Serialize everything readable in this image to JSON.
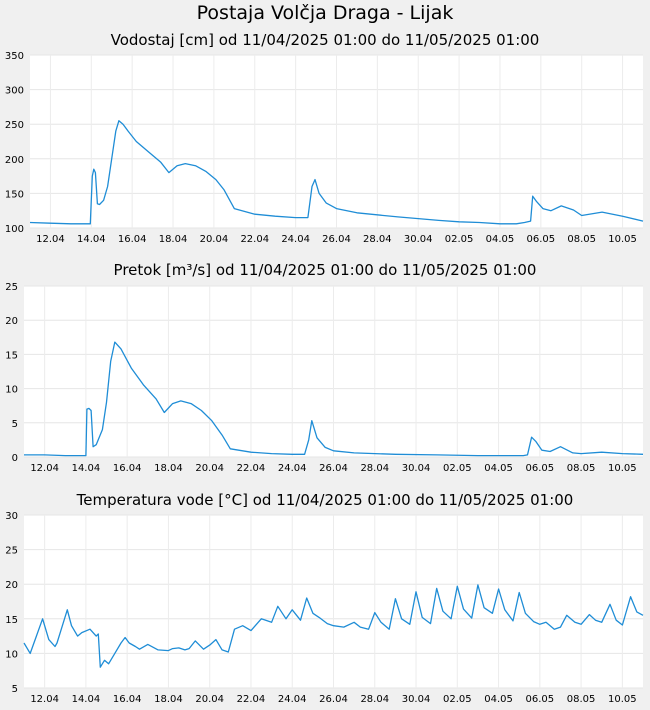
{
  "page_title": "Postaja Volčja Draga - Lijak",
  "chart_data": [
    {
      "type": "line",
      "title": "Vodostaj [cm] od 11/04/2025 01:00 do 11/05/2025 01:00",
      "ylabel": "Vodostaj [cm]",
      "ylim": [
        100,
        350
      ],
      "yticks": [
        "350",
        "300",
        "250",
        "200",
        "150",
        "100"
      ],
      "xlim": [
        0,
        30
      ],
      "xticks": [
        "12.04",
        "14.04",
        "16.04",
        "18.04",
        "20.04",
        "22.04",
        "24.04",
        "26.04",
        "28.04",
        "30.04",
        "02.05",
        "04.05",
        "06.05",
        "08.05",
        "10.05"
      ],
      "color": "#1f8dd6",
      "series": [
        {
          "name": "Vodostaj",
          "x": [
            0,
            1,
            2,
            2.95,
            3.05,
            3.12,
            3.2,
            3.3,
            3.4,
            3.6,
            3.8,
            4.0,
            4.2,
            4.35,
            4.55,
            4.8,
            5.2,
            5.8,
            6.4,
            6.8,
            7.2,
            7.6,
            8.1,
            8.6,
            9.1,
            9.5,
            10,
            11,
            12,
            13,
            13.6,
            13.8,
            13.95,
            14.15,
            14.5,
            15,
            16,
            18,
            20,
            21,
            22,
            23,
            23.8,
            24.2,
            24.5,
            24.6,
            24.8,
            25.1,
            25.5,
            26,
            26.6,
            27,
            28,
            29,
            30
          ],
          "y": [
            108,
            107,
            106,
            106,
            175,
            185,
            180,
            135,
            134,
            140,
            160,
            200,
            240,
            255,
            250,
            240,
            225,
            210,
            195,
            180,
            190,
            193,
            190,
            182,
            170,
            155,
            128,
            120,
            117,
            115,
            115,
            160,
            170,
            150,
            136,
            128,
            122,
            116,
            111,
            109,
            108,
            106,
            106,
            108,
            110,
            146,
            138,
            128,
            125,
            132,
            126,
            118,
            123,
            117,
            110
          ]
        }
      ]
    },
    {
      "type": "line",
      "title": "Pretok [m³/s] od 11/04/2025 01:00 do 11/05/2025 01:00",
      "ylabel": "Pretok [m³/s]",
      "ylim": [
        0,
        25
      ],
      "yticks": [
        "25",
        "20",
        "15",
        "10",
        "5",
        "0"
      ],
      "xlim": [
        0,
        30
      ],
      "xticks": [
        "12.04",
        "14.04",
        "16.04",
        "18.04",
        "20.04",
        "22.04",
        "24.04",
        "26.04",
        "28.04",
        "30.04",
        "02.05",
        "04.05",
        "06.05",
        "08.05",
        "10.05"
      ],
      "color": "#1f8dd6",
      "series": [
        {
          "name": "Pretok",
          "x": [
            0,
            1,
            2,
            3.0,
            3.05,
            3.15,
            3.25,
            3.35,
            3.5,
            3.8,
            4.0,
            4.2,
            4.4,
            4.7,
            5.2,
            5.8,
            6.4,
            6.8,
            7.2,
            7.6,
            8.1,
            8.6,
            9.1,
            9.6,
            10,
            11,
            12,
            13,
            13.6,
            13.8,
            13.95,
            14.2,
            14.6,
            15,
            16,
            18,
            20,
            22,
            24.2,
            24.4,
            24.6,
            24.8,
            25.1,
            25.5,
            26,
            26.6,
            27,
            28,
            29,
            30
          ],
          "y": [
            0.3,
            0.3,
            0.2,
            0.2,
            7.0,
            7.1,
            6.8,
            1.5,
            1.8,
            4,
            8,
            14,
            16.8,
            15.8,
            13,
            10.5,
            8.5,
            6.5,
            7.8,
            8.2,
            7.8,
            6.8,
            5.3,
            3.2,
            1.2,
            0.7,
            0.5,
            0.4,
            0.4,
            2.5,
            5.3,
            2.8,
            1.4,
            0.9,
            0.6,
            0.4,
            0.3,
            0.2,
            0.2,
            0.3,
            2.9,
            2.3,
            1.0,
            0.8,
            1.5,
            0.6,
            0.5,
            0.7,
            0.5,
            0.4
          ]
        }
      ]
    },
    {
      "type": "line",
      "title": "Temperatura vode [°C] od 11/04/2025 01:00 do 11/05/2025 01:00",
      "ylabel": "Temperatura vode [°C]",
      "ylim": [
        5,
        30
      ],
      "yticks": [
        "30",
        "25",
        "20",
        "15",
        "10",
        "5"
      ],
      "xlim": [
        0,
        30
      ],
      "xticks": [
        "12.04",
        "14.04",
        "16.04",
        "18.04",
        "20.04",
        "22.04",
        "24.04",
        "26.04",
        "28.04",
        "30.04",
        "02.05",
        "04.05",
        "06.05",
        "08.05",
        "10.05"
      ],
      "color": "#1f8dd6",
      "series": [
        {
          "name": "Temperatura vode",
          "x": [
            0,
            0.3,
            0.6,
            0.9,
            1.2,
            1.5,
            1.6,
            2.1,
            2.3,
            2.6,
            2.8,
            3.2,
            3.5,
            3.6,
            3.7,
            3.9,
            4.1,
            4.4,
            4.7,
            4.9,
            5.1,
            5.4,
            5.6,
            6.0,
            6.5,
            7.0,
            7.2,
            7.5,
            7.8,
            8.0,
            8.3,
            8.7,
            9.0,
            9.3,
            9.6,
            9.9,
            10.2,
            10.6,
            11.0,
            11.5,
            12.0,
            12.3,
            12.7,
            13.0,
            13.4,
            13.7,
            14.0,
            14.3,
            14.7,
            15.0,
            15.5,
            16.0,
            16.3,
            16.7,
            17.0,
            17.3,
            17.7,
            18.0,
            18.3,
            18.7,
            19.0,
            19.3,
            19.7,
            20.0,
            20.3,
            20.7,
            21.0,
            21.3,
            21.7,
            22.0,
            22.3,
            22.7,
            23.0,
            23.3,
            23.7,
            24.0,
            24.3,
            24.7,
            25.0,
            25.3,
            25.7,
            26.0,
            26.3,
            26.7,
            27.0,
            27.4,
            27.7,
            28.0,
            28.4,
            28.7,
            29.0,
            29.4,
            29.7,
            30
          ],
          "y": [
            11.5,
            10,
            12.5,
            15,
            12,
            11,
            11.5,
            16.3,
            14,
            12.5,
            13,
            13.5,
            12.5,
            12.8,
            8,
            9,
            8.5,
            10,
            11.5,
            12.3,
            11.5,
            11,
            10.6,
            11.3,
            10.5,
            10.4,
            10.7,
            10.8,
            10.5,
            10.7,
            11.8,
            10.6,
            11.2,
            12,
            10.5,
            10.2,
            13.5,
            14,
            13.3,
            15,
            14.5,
            16.8,
            15,
            16.3,
            14.8,
            18,
            15.8,
            15.2,
            14.3,
            14,
            13.8,
            14.5,
            13.8,
            13.5,
            15.9,
            14.5,
            13.5,
            17.9,
            15,
            14.2,
            18.9,
            15.2,
            14.3,
            19.4,
            16.1,
            15,
            19.7,
            16.4,
            15.1,
            19.9,
            16.6,
            15.8,
            19.3,
            16.3,
            14.7,
            18.8,
            15.8,
            14.6,
            14.2,
            14.5,
            13.5,
            13.8,
            15.5,
            14.5,
            14.2,
            15.6,
            14.8,
            14.5,
            17.1,
            14.8,
            14.1,
            18.2,
            16,
            15.5
          ]
        }
      ]
    }
  ]
}
